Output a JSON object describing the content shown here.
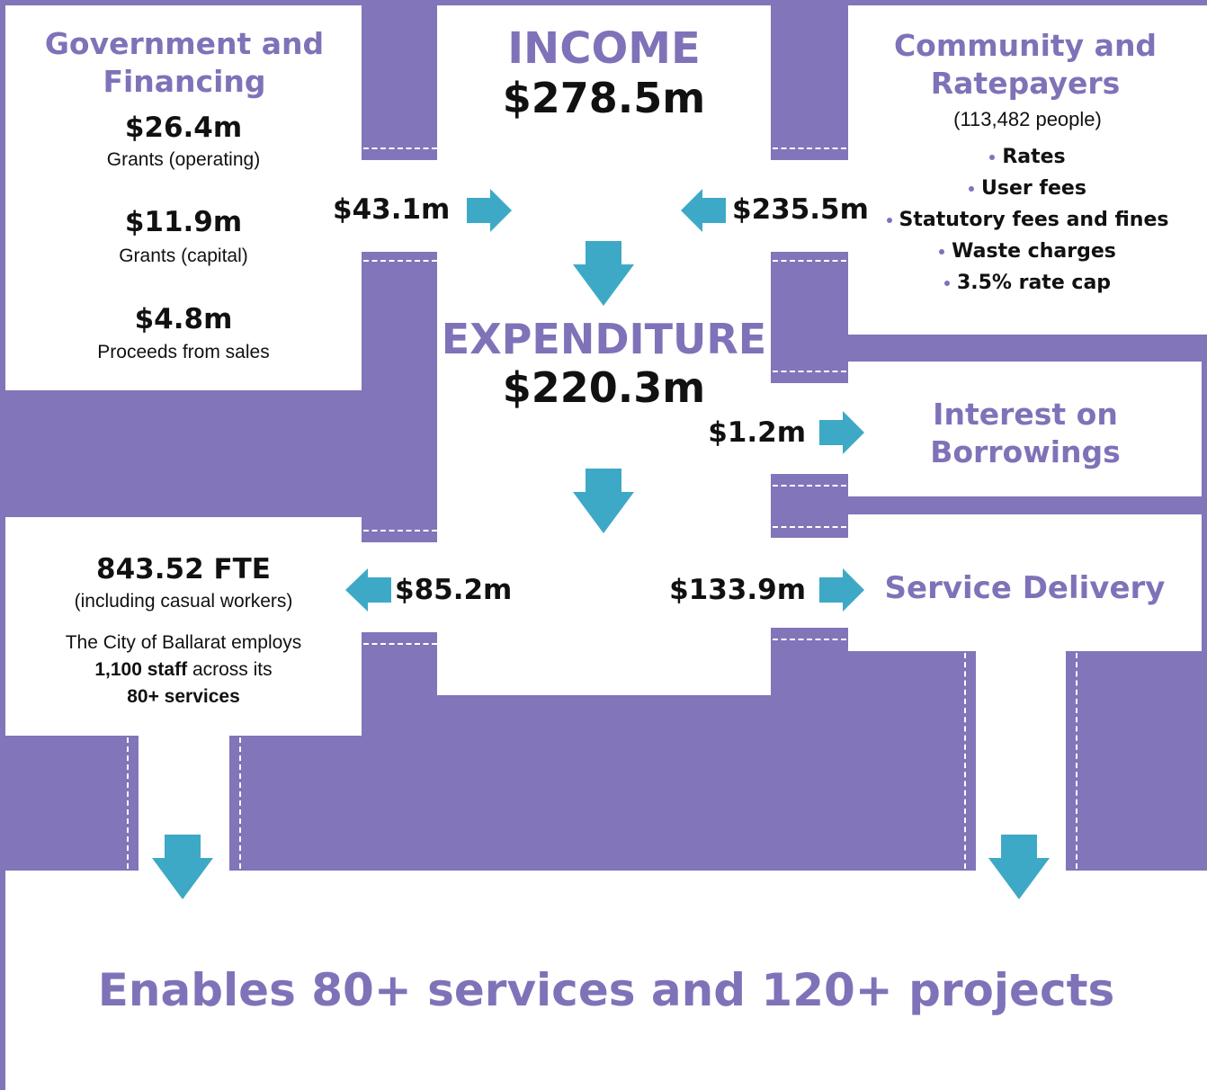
{
  "government": {
    "title": "Government and Financing",
    "items": [
      {
        "amount": "$26.4m",
        "label": "Grants (operating)"
      },
      {
        "amount": "$11.9m",
        "label": "Grants (capital)"
      },
      {
        "amount": "$4.8m",
        "label": "Proceeds from sales"
      }
    ]
  },
  "income": {
    "title": "INCOME",
    "amount": "$278.5m"
  },
  "community": {
    "title": "Community and Ratepayers",
    "population": "(113,482 people)",
    "items": [
      "Rates",
      "User fees",
      "Statutory fees and fines",
      "Waste charges",
      "3.5% rate cap"
    ]
  },
  "expenditure": {
    "title": "EXPENDITURE",
    "amount": "$220.3m"
  },
  "flows": {
    "government_in": "$43.1m",
    "community_in": "$235.5m",
    "interest": "$1.2m",
    "staff": "$85.2m",
    "services": "$133.9m"
  },
  "interest": {
    "title": "Interest on Borrowings"
  },
  "staff": {
    "fte": "843.52 FTE",
    "note": "(including casual workers)",
    "text": [
      "The City of Ballarat employs",
      "1,100 staff",
      "across its",
      "80+ services"
    ]
  },
  "services": {
    "title": "Service Delivery"
  },
  "footer": "Enables 80+ services and 120+ projects"
}
